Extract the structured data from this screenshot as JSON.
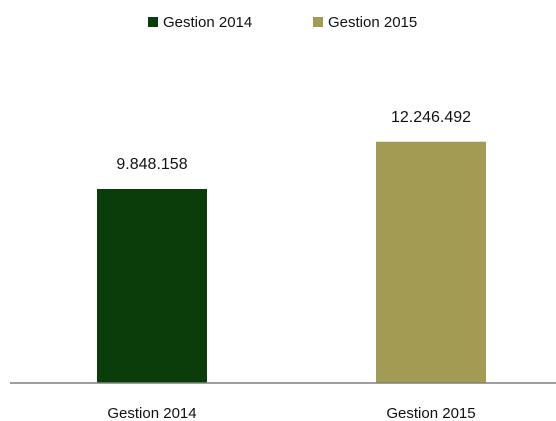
{
  "chart_data": {
    "type": "bar",
    "categories": [
      "Gestion 2014",
      "Gestion 2015"
    ],
    "series": [
      {
        "name": "Gestion 2014",
        "values": [
          9848158,
          null
        ],
        "color": "#0b3d0b"
      },
      {
        "name": "Gestion 2015",
        "values": [
          null,
          12246492
        ],
        "color": "#a39a54"
      }
    ],
    "values": [
      9848158,
      12246492
    ],
    "data_labels": [
      "9.848.158",
      "12.246.492"
    ],
    "legend": {
      "position": "top",
      "entries": [
        "Gestion 2014",
        "Gestion 2015"
      ]
    },
    "ylim": [
      0,
      14500000
    ],
    "grid": false,
    "title": "",
    "xlabel": "",
    "ylabel": ""
  }
}
